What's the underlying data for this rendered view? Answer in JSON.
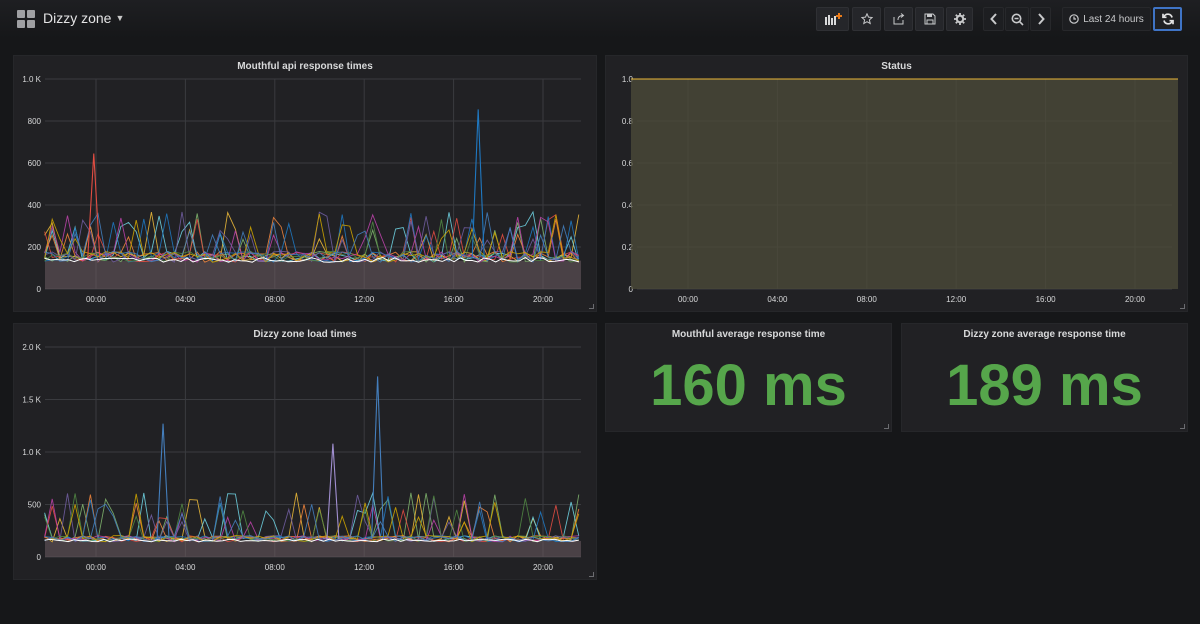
{
  "header": {
    "dashboard_title": "Dizzy zone",
    "time_range_label": "Last 24 hours",
    "icons": [
      "dashboard-grid-icon",
      "add-panel-icon",
      "star-icon",
      "share-icon",
      "save-icon",
      "settings-icon",
      "chevron-left-icon",
      "zoom-out-icon",
      "chevron-right-icon",
      "clock-icon",
      "refresh-icon"
    ],
    "accent_color": "#3f74c6"
  },
  "panels": {
    "api": {
      "title": "Mouthful api response times",
      "y_ticks": [
        "0",
        "200",
        "400",
        "600",
        "800",
        "1.0 K"
      ],
      "x_ticks": [
        "00:00",
        "04:00",
        "08:00",
        "12:00",
        "16:00",
        "20:00"
      ]
    },
    "status": {
      "title": "Status",
      "y_ticks": [
        "0",
        "0.2",
        "0.4",
        "0.6",
        "0.8",
        "1.0"
      ],
      "x_ticks": [
        "00:00",
        "04:00",
        "08:00",
        "12:00",
        "16:00",
        "20:00"
      ]
    },
    "load": {
      "title": "Dizzy zone load times",
      "y_ticks": [
        "0",
        "500",
        "1.0 K",
        "1.5 K",
        "2.0 K"
      ],
      "x_ticks": [
        "00:00",
        "04:00",
        "08:00",
        "12:00",
        "16:00",
        "20:00"
      ]
    },
    "mouthful_avg": {
      "title": "Mouthful average response time",
      "value": "160 ms",
      "color": "#56a64b"
    },
    "dizzy_avg": {
      "title": "Dizzy zone average response time",
      "value": "189 ms",
      "color": "#56a64b"
    }
  },
  "chart_data": [
    {
      "type": "line",
      "ylim": [
        0,
        1000
      ],
      "x_hours": [
        0,
        4,
        8,
        12,
        16,
        20
      ],
      "palette": [
        "#7eb26d",
        "#eab839",
        "#6ed0e0",
        "#ef843c",
        "#e24d42",
        "#1f78c1",
        "#ba43a9",
        "#705da0",
        "#508642",
        "#cca300",
        "#447ebc",
        "#c15c17",
        "#ffffff"
      ],
      "spikes": [
        {
          "x_hour": -0.1,
          "y": 645,
          "color": "#e24d42"
        },
        {
          "x_hour": 17.1,
          "y": 855,
          "color": "#1f78c1"
        }
      ],
      "baseline": 150,
      "peak_range": [
        230,
        370
      ]
    },
    {
      "type": "area",
      "ylim": [
        0,
        1
      ],
      "values": [
        1,
        1
      ],
      "fill": "#4e4c39",
      "line": "#eab839"
    },
    {
      "type": "line",
      "ylim": [
        0,
        2000
      ],
      "x_hours": [
        0,
        4,
        8,
        12,
        16,
        20
      ],
      "palette": [
        "#7eb26d",
        "#eab839",
        "#6ed0e0",
        "#ef843c",
        "#e24d42",
        "#1f78c1",
        "#ba43a9",
        "#705da0",
        "#508642",
        "#cca300",
        "#447ebc",
        "#c15c17",
        "#ffffff"
      ],
      "spikes": [
        {
          "x_hour": 3,
          "y": 1270,
          "color": "#447ebc"
        },
        {
          "x_hour": 10.6,
          "y": 1080,
          "color": "#a18fd1"
        },
        {
          "x_hour": 12.6,
          "y": 1720,
          "color": "#447ebc"
        }
      ],
      "baseline": 170,
      "peak_range": [
        330,
        620
      ]
    }
  ]
}
